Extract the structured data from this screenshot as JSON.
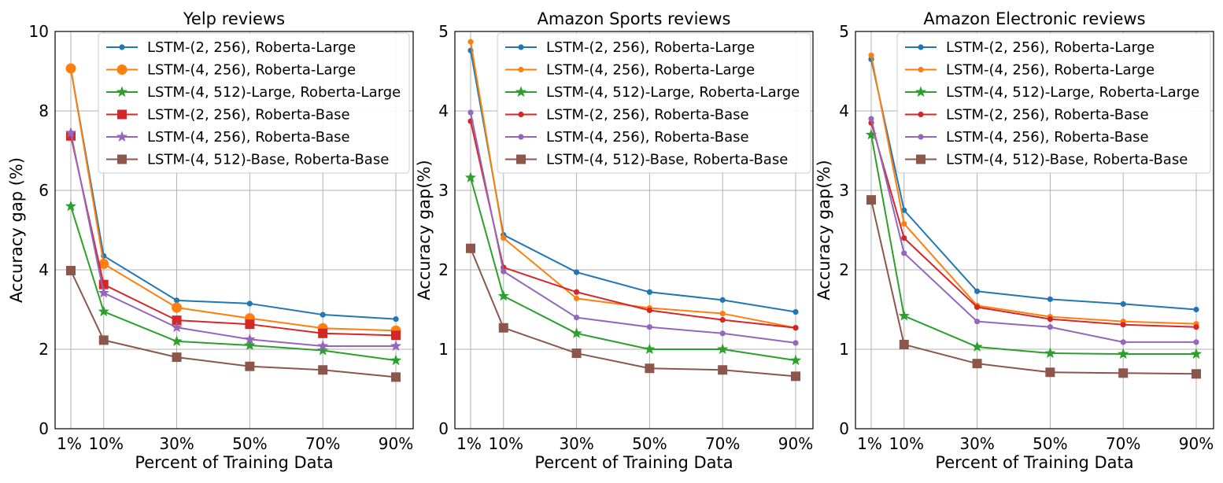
{
  "figure": {
    "x_categories": [
      "1%",
      "10%",
      "30%",
      "50%",
      "70%",
      "90%"
    ],
    "x_positions": [
      1,
      10,
      30,
      50,
      70,
      90
    ],
    "colors": {
      "blue": "#1f77b4",
      "orange": "#ff7f0e",
      "green": "#2ca02c",
      "red": "#d62728",
      "purple": "#9467bd",
      "brown": "#8c564b",
      "grid": "#b0b0b0",
      "legend_border": "#cccccc"
    }
  },
  "chart_data": [
    {
      "type": "line",
      "title": "Yelp reviews",
      "xlabel": "Percent of Training Data",
      "ylabel": "Accuracy gap (%)",
      "ylim": [
        0,
        10
      ],
      "yticks": [
        0,
        2,
        4,
        6,
        8,
        10
      ],
      "yticklabels": [
        "0",
        "2",
        "4",
        "6",
        "8",
        "10"
      ],
      "legend_position": "top-right",
      "series": [
        {
          "name": "LSTM-(2, 256), Roberta-Large",
          "color": "blue",
          "marker": "circle-small",
          "values": [
            9.05,
            4.35,
            3.23,
            3.15,
            2.87,
            2.76
          ]
        },
        {
          "name": "LSTM-(4, 256), Roberta-Large",
          "color": "orange",
          "marker": "circle-large",
          "values": [
            9.07,
            4.15,
            3.05,
            2.78,
            2.53,
            2.47
          ]
        },
        {
          "name": "LSTM-(4, 512)-Large, Roberta-Large",
          "color": "green",
          "marker": "star",
          "values": [
            5.6,
            2.95,
            2.2,
            2.1,
            1.97,
            1.72
          ]
        },
        {
          "name": "LSTM-(2, 256), Roberta-Base",
          "color": "red",
          "marker": "square",
          "values": [
            7.37,
            3.63,
            2.73,
            2.63,
            2.4,
            2.35
          ]
        },
        {
          "name": "LSTM-(4, 256), Roberta-Base",
          "color": "purple",
          "marker": "star",
          "values": [
            7.45,
            3.42,
            2.55,
            2.25,
            2.08,
            2.08
          ]
        },
        {
          "name": "LSTM-(4, 512)-Base, Roberta-Base",
          "color": "brown",
          "marker": "square",
          "values": [
            3.98,
            2.23,
            1.8,
            1.57,
            1.48,
            1.3
          ]
        }
      ]
    },
    {
      "type": "line",
      "title": "Amazon Sports reviews",
      "xlabel": "Percent of Training Data",
      "ylabel": "Accuracy gap(%)",
      "ylim": [
        0,
        5
      ],
      "yticks": [
        0,
        1,
        2,
        3,
        4,
        5
      ],
      "yticklabels": [
        "0",
        "1",
        "2",
        "3",
        "4",
        "5"
      ],
      "legend_position": "top-right",
      "series": [
        {
          "name": "LSTM-(2, 256), Roberta-Large",
          "color": "blue",
          "marker": "circle-small",
          "values": [
            4.76,
            2.44,
            1.97,
            1.72,
            1.62,
            1.47
          ]
        },
        {
          "name": "LSTM-(4, 256), Roberta-Large",
          "color": "orange",
          "marker": "circle-small",
          "values": [
            4.87,
            2.4,
            1.64,
            1.52,
            1.45,
            1.27
          ]
        },
        {
          "name": "LSTM-(4, 512)-Large, Roberta-Large",
          "color": "green",
          "marker": "star",
          "values": [
            3.16,
            1.67,
            1.2,
            1.0,
            1.0,
            0.86
          ]
        },
        {
          "name": "LSTM-(2, 256), Roberta-Base",
          "color": "red",
          "marker": "circle-small",
          "values": [
            3.87,
            2.03,
            1.72,
            1.49,
            1.37,
            1.27
          ]
        },
        {
          "name": "LSTM-(4, 256), Roberta-Base",
          "color": "purple",
          "marker": "circle-small",
          "values": [
            3.98,
            1.98,
            1.4,
            1.28,
            1.2,
            1.08
          ]
        },
        {
          "name": "LSTM-(4, 512)-Base, Roberta-Base",
          "color": "brown",
          "marker": "square",
          "values": [
            2.27,
            1.27,
            0.95,
            0.76,
            0.74,
            0.66
          ]
        }
      ]
    },
    {
      "type": "line",
      "title": "Amazon Electronic reviews",
      "xlabel": "Percent of Training Data",
      "ylabel": "Accuracy gap(%)",
      "ylim": [
        0,
        5
      ],
      "yticks": [
        0,
        1,
        2,
        3,
        4,
        5
      ],
      "yticklabels": [
        "0",
        "1",
        "2",
        "3",
        "4",
        "5"
      ],
      "legend_position": "top-right",
      "series": [
        {
          "name": "LSTM-(2, 256), Roberta-Large",
          "color": "blue",
          "marker": "circle-small",
          "values": [
            4.65,
            2.75,
            1.73,
            1.63,
            1.57,
            1.5
          ]
        },
        {
          "name": "LSTM-(4, 256), Roberta-Large",
          "color": "orange",
          "marker": "circle-small",
          "values": [
            4.7,
            2.58,
            1.55,
            1.41,
            1.35,
            1.32
          ]
        },
        {
          "name": "LSTM-(4, 512)-Large, Roberta-Large",
          "color": "green",
          "marker": "star",
          "values": [
            3.7,
            1.42,
            1.03,
            0.95,
            0.94,
            0.94
          ]
        },
        {
          "name": "LSTM-(2, 256), Roberta-Base",
          "color": "red",
          "marker": "circle-small",
          "values": [
            3.85,
            2.4,
            1.53,
            1.38,
            1.31,
            1.28
          ]
        },
        {
          "name": "LSTM-(4, 256), Roberta-Base",
          "color": "purple",
          "marker": "circle-small",
          "values": [
            3.9,
            2.21,
            1.35,
            1.28,
            1.09,
            1.09
          ]
        },
        {
          "name": "LSTM-(4, 512)-Base, Roberta-Base",
          "color": "brown",
          "marker": "square",
          "values": [
            2.88,
            1.06,
            0.82,
            0.71,
            0.7,
            0.69
          ]
        }
      ]
    }
  ]
}
